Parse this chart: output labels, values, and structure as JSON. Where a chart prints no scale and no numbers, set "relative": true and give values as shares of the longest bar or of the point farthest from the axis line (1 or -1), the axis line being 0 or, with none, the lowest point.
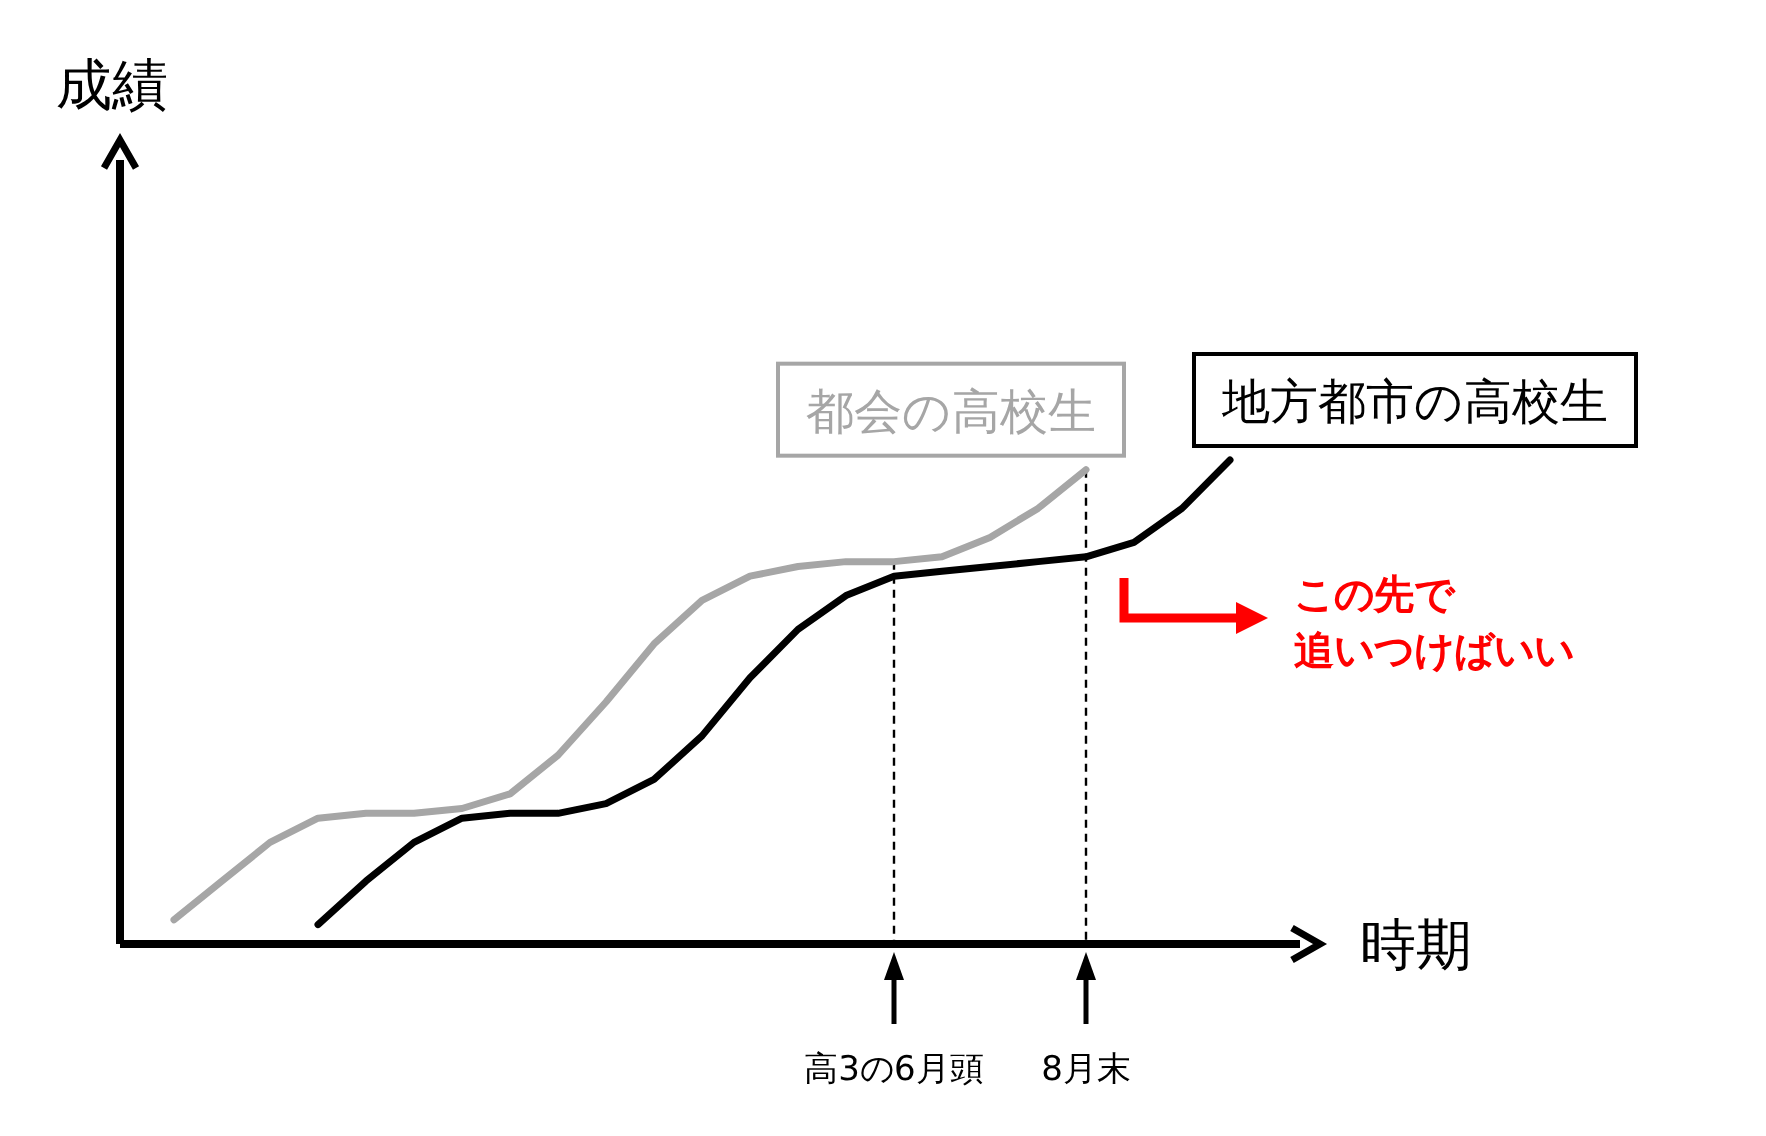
{
  "chart_data": {
    "type": "line",
    "relative": true,
    "xlabel": "時期",
    "categories": [
      null,
      null,
      null,
      null,
      null,
      null,
      null,
      null,
      null,
      null,
      null,
      null,
      null,
      null,
      null,
      null,
      "高3の6月頭",
      null,
      null,
      null,
      "8月末",
      null,
      null,
      null
    ],
    "series": [
      {
        "name": "都会の高校生",
        "color": "#a6a6a6",
        "values": [
          null,
          0.05,
          0.13,
          0.21,
          0.26,
          0.27,
          0.27,
          0.28,
          0.31,
          0.39,
          0.5,
          0.62,
          0.71,
          0.76,
          0.78,
          0.79,
          0.79,
          0.8,
          0.84,
          0.9,
          0.98,
          null,
          null,
          null
        ]
      },
      {
        "name": "地方都市の高校生",
        "color": "#000000",
        "values": [
          null,
          null,
          null,
          null,
          0.04,
          0.13,
          0.21,
          0.26,
          0.27,
          0.27,
          0.29,
          0.34,
          0.43,
          0.55,
          0.65,
          0.72,
          0.76,
          0.77,
          0.78,
          0.79,
          0.8,
          0.83,
          0.9,
          1.0
        ]
      }
    ],
    "ref_lines": [
      {
        "axis": "x",
        "value": "高3の6月頭",
        "line_style": "dashed",
        "color": "#000000"
      },
      {
        "axis": "x",
        "value": "8月末",
        "line_style": "dashed",
        "color": "#000000"
      }
    ],
    "annotations": [
      "成績",
      "この先で",
      "追いつけばいい"
    ]
  }
}
